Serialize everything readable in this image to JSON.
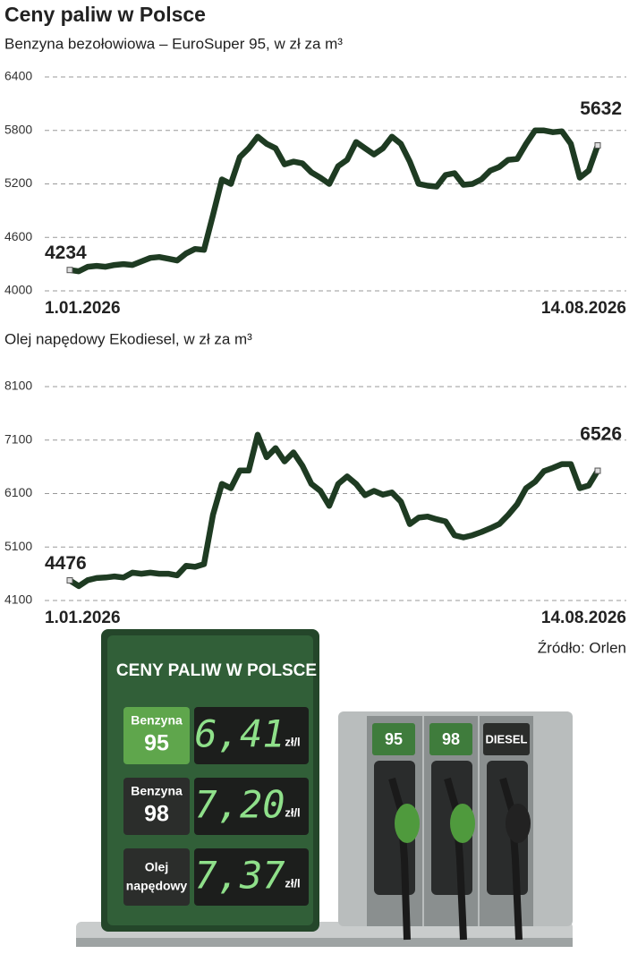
{
  "title": "Ceny paliw w Polsce",
  "chart_data": [
    {
      "type": "line",
      "subtitle": "Benzyna bezołowiowa – EuroSuper 95, w zł za m³",
      "categories": [
        "1.01.2026",
        null,
        null,
        null,
        null,
        null,
        null,
        null,
        null,
        null,
        null,
        null,
        null,
        null,
        null,
        null,
        null,
        null,
        null,
        null,
        null,
        null,
        null,
        null,
        null,
        null,
        null,
        null,
        null,
        null,
        null,
        null,
        null,
        null,
        null,
        null,
        null,
        null,
        null,
        null,
        null,
        null,
        null,
        null,
        null,
        null,
        null,
        null,
        null,
        null,
        null,
        null,
        null,
        null,
        null,
        null,
        null,
        null,
        null,
        "14.08.2026"
      ],
      "values": [
        4234,
        4220,
        4270,
        4280,
        4270,
        4290,
        4300,
        4290,
        4330,
        4370,
        4380,
        4360,
        4340,
        4420,
        4470,
        4460,
        4850,
        5250,
        5200,
        5500,
        5600,
        5730,
        5650,
        5600,
        5420,
        5450,
        5430,
        5330,
        5270,
        5200,
        5400,
        5470,
        5670,
        5600,
        5530,
        5600,
        5730,
        5650,
        5450,
        5200,
        5180,
        5170,
        5300,
        5320,
        5190,
        5200,
        5250,
        5350,
        5390,
        5470,
        5480,
        5650,
        5800,
        5800,
        5780,
        5790,
        5650,
        5270,
        5350,
        5632
      ],
      "color": "#1e3b22",
      "ylim": [
        4000,
        6400
      ],
      "yticks": [
        4000,
        4600,
        5200,
        5800,
        6400
      ],
      "grid": true
    },
    {
      "type": "line",
      "subtitle": "Olej napędowy Ekodiesel, w zł za m³",
      "categories": [
        "1.01.2026",
        null,
        null,
        null,
        null,
        null,
        null,
        null,
        null,
        null,
        null,
        null,
        null,
        null,
        null,
        null,
        null,
        null,
        null,
        null,
        null,
        null,
        null,
        null,
        null,
        null,
        null,
        null,
        null,
        null,
        null,
        null,
        null,
        null,
        null,
        null,
        null,
        null,
        null,
        null,
        null,
        null,
        null,
        null,
        null,
        null,
        null,
        null,
        null,
        null,
        null,
        null,
        null,
        null,
        null,
        null,
        null,
        null,
        null,
        "14.08.2026"
      ],
      "values": [
        4476,
        4370,
        4480,
        4520,
        4530,
        4550,
        4530,
        4620,
        4600,
        4620,
        4600,
        4600,
        4570,
        4750,
        4730,
        4780,
        5700,
        6280,
        6200,
        6530,
        6530,
        7200,
        6780,
        6950,
        6700,
        6870,
        6620,
        6280,
        6150,
        5870,
        6280,
        6420,
        6280,
        6070,
        6150,
        6080,
        6120,
        5950,
        5530,
        5650,
        5670,
        5620,
        5580,
        5320,
        5280,
        5320,
        5380,
        5450,
        5530,
        5700,
        5900,
        6200,
        6320,
        6520,
        6580,
        6650,
        6650,
        6200,
        6250,
        6526
      ],
      "color": "#1e3b22",
      "ylim": [
        4100,
        8100
      ],
      "yticks": [
        4100,
        5100,
        6100,
        7100,
        8100
      ],
      "grid": true
    }
  ],
  "source": "Źródło: Orlen",
  "illustration": {
    "sign_title": "CENY PALIW W POLSCE",
    "rows": [
      {
        "label": [
          "Benzyna",
          "95"
        ],
        "price": "6,41",
        "unit": "zł/l"
      },
      {
        "label": [
          "Benzyna",
          "98"
        ],
        "price": "7,20",
        "unit": "zł/l"
      },
      {
        "label": [
          "Olej",
          "napędowy"
        ],
        "price": "7,37",
        "unit": "zł/l"
      }
    ],
    "pumps": [
      "95",
      "98",
      "DIESEL"
    ]
  }
}
